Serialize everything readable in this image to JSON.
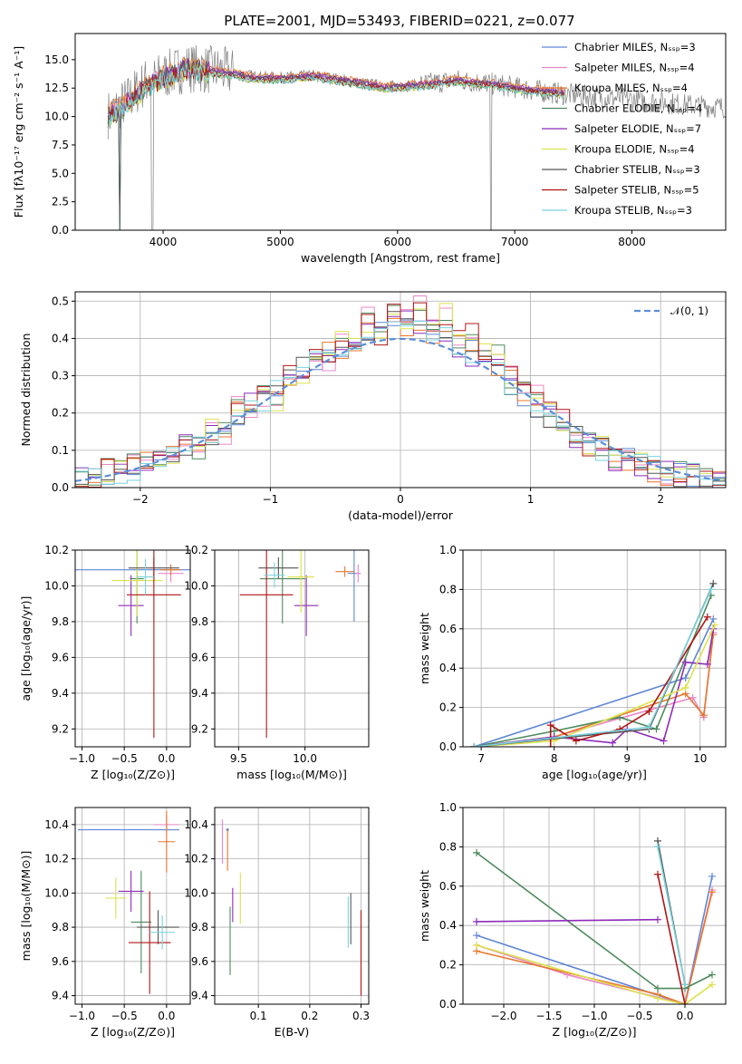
{
  "figure": {
    "title": "PLATE=2001, MJD=53493, FIBERID=0221, z=0.077"
  },
  "legend_top": [
    {
      "label": "Chabrier MILES, Nₛₛₚ=3",
      "color": "#5f86d6"
    },
    {
      "label": "Salpeter MILES, Nₛₛₚ=4",
      "color": "#e987c8"
    },
    {
      "label": "Kroupa MILES, Nₛₛₚ=4",
      "color": "#e8762b"
    },
    {
      "label": "Chabrier ELODIE, Nₛₛₚ=4",
      "color": "#4e8a5e"
    },
    {
      "label": "Salpeter ELODIE, Nₛₛₚ=7",
      "color": "#8e2bb8"
    },
    {
      "label": "Kroupa ELODIE, Nₛₛₚ=4",
      "color": "#dce24a"
    },
    {
      "label": "Chabrier STELIB, Nₛₛₚ=3",
      "color": "#555555"
    },
    {
      "label": "Salpeter STELIB, Nₛₛₚ=5",
      "color": "#b01515"
    },
    {
      "label": "Kroupa STELIB, Nₛₛₚ=3",
      "color": "#7ad3dd"
    }
  ],
  "legend_hist": {
    "label": "𝒩(0, 1)",
    "color": "#5b8fd9"
  },
  "chart_data": [
    {
      "id": "spectrum",
      "type": "line",
      "title": "PLATE=2001, MJD=53493, FIBERID=0221, z=0.077",
      "xlabel": "wavelength [Angstrom, rest frame]",
      "ylabel": "Flux [fλ10⁻¹⁷ erg cm⁻² s⁻¹ A⁻¹]",
      "xlim": [
        3250,
        8800
      ],
      "ylim": [
        0,
        17.3
      ],
      "xticks": [
        4000,
        5000,
        6000,
        7000,
        8000
      ],
      "yticks": [
        0.0,
        2.5,
        5.0,
        7.5,
        10.0,
        12.5,
        15.0
      ],
      "data_envelope": {
        "x": [
          3550,
          3700,
          3850,
          4000,
          4200,
          4500,
          4800,
          5000,
          5300,
          5600,
          5900,
          6200,
          6500,
          6800,
          7100,
          7400,
          7700,
          8000,
          8300,
          8500,
          8800
        ],
        "y": [
          10.2,
          11.5,
          13.0,
          13.6,
          14.3,
          14.0,
          13.5,
          13.4,
          13.6,
          13.1,
          12.6,
          12.8,
          13.2,
          12.9,
          12.4,
          12.0,
          11.7,
          11.5,
          11.2,
          11.0,
          10.8
        ]
      },
      "series": [
        {
          "name": "Chabrier MILES, N_SSP=3",
          "x": [
            3530,
            3560,
            3700,
            3850,
            4000,
            4200,
            4500,
            4800,
            5000,
            5300,
            5600,
            5900,
            6200,
            6500,
            6800,
            7100,
            7420
          ],
          "y": [
            10.0,
            10.3,
            11.2,
            12.6,
            13.4,
            14.2,
            13.9,
            13.3,
            13.3,
            13.5,
            13.0,
            12.5,
            12.7,
            13.1,
            12.8,
            12.3,
            12.0
          ]
        },
        {
          "name": "Kroupa STELIB, N_SSP=3",
          "x": [
            3530,
            3560,
            3700,
            3850,
            4000,
            4200,
            4500,
            4800,
            5000,
            5300,
            5600,
            5900,
            6200,
            6500,
            6800,
            7100,
            7420
          ],
          "y": [
            9.5,
            10.0,
            11.0,
            12.4,
            13.2,
            14.0,
            13.7,
            13.2,
            13.2,
            13.4,
            12.9,
            12.4,
            12.6,
            13.0,
            12.7,
            12.2,
            11.9
          ]
        }
      ]
    },
    {
      "id": "residuals",
      "type": "histogram",
      "xlabel": "(data-model)/error",
      "ylabel": "Normed distribution",
      "xlim": [
        -2.5,
        2.5
      ],
      "ylim": [
        0,
        0.525
      ],
      "xticks": [
        -2,
        -1,
        0,
        1,
        2
      ],
      "yticks": [
        0.0,
        0.1,
        0.2,
        0.3,
        0.4,
        0.5
      ],
      "bin_edges_approx": [
        -2.5,
        -2.4,
        -2.3,
        -2.2,
        -2.1,
        -2.0,
        -1.9,
        -1.8,
        -1.7,
        -1.6,
        -1.5,
        -1.4,
        -1.3,
        -1.2,
        -1.1,
        -1.0,
        -0.9,
        -0.8,
        -0.7,
        -0.6,
        -0.5,
        -0.4,
        -0.3,
        -0.2,
        -0.1,
        0.0,
        0.1,
        0.2,
        0.3,
        0.4,
        0.5,
        0.6,
        0.7,
        0.8,
        0.9,
        1.0,
        1.1,
        1.2,
        1.3,
        1.4,
        1.5,
        1.6,
        1.7,
        1.8,
        1.9,
        2.0,
        2.1,
        2.2,
        2.3,
        2.4,
        2.5
      ],
      "series_approx_values": [
        [
          0.02,
          0.03,
          0.04,
          0.04,
          0.05,
          0.06,
          0.08,
          0.09,
          0.11,
          0.13,
          0.15,
          0.17,
          0.2,
          0.22,
          0.24,
          0.27,
          0.3,
          0.32,
          0.34,
          0.36,
          0.38,
          0.4,
          0.42,
          0.43,
          0.44,
          0.44,
          0.43,
          0.42,
          0.4,
          0.38,
          0.36,
          0.34,
          0.31,
          0.28,
          0.25,
          0.22,
          0.19,
          0.17,
          0.14,
          0.12,
          0.1,
          0.08,
          0.07,
          0.06,
          0.05,
          0.04,
          0.03,
          0.03,
          0.02,
          0.02
        ],
        [
          0.03,
          0.02,
          0.05,
          0.04,
          0.06,
          0.05,
          0.09,
          0.08,
          0.12,
          0.11,
          0.16,
          0.14,
          0.21,
          0.19,
          0.25,
          0.24,
          0.31,
          0.29,
          0.35,
          0.33,
          0.4,
          0.38,
          0.45,
          0.41,
          0.48,
          0.46,
          0.5,
          0.44,
          0.46,
          0.4,
          0.41,
          0.36,
          0.35,
          0.3,
          0.28,
          0.25,
          0.21,
          0.18,
          0.15,
          0.12,
          0.11,
          0.08,
          0.08,
          0.06,
          0.06,
          0.04,
          0.04,
          0.03,
          0.03,
          0.02
        ]
      ],
      "reference": {
        "name": "𝒩(0, 1)",
        "mu": 0,
        "sigma": 1
      }
    },
    {
      "id": "age-vs-Z",
      "type": "scatter",
      "xlabel": "Z [log₁₀(Z/Z⊙)]",
      "ylabel": "age  [log₁₀(age/yr)]",
      "xlim": [
        -1.08,
        0.28
      ],
      "ylim": [
        9.1,
        10.2
      ],
      "xticks": [
        -1.0,
        -0.5,
        0.0
      ],
      "yticks": [
        9.2,
        9.4,
        9.6,
        9.8,
        10.0,
        10.2
      ],
      "points": [
        {
          "x": -0.4,
          "y": 10.09,
          "xerr": 0.7,
          "yerr": 0.0,
          "color": "#5f86d6"
        },
        {
          "x": 0.05,
          "y": 10.07,
          "xerr": 0.15,
          "yerr": 0.05,
          "color": "#e987c8"
        },
        {
          "x": 0.05,
          "y": 10.09,
          "xerr": 0.12,
          "yerr": 0.03,
          "color": "#e8762b"
        },
        {
          "x": -0.35,
          "y": 10.04,
          "xerr": 0.08,
          "yerr": 0.25,
          "color": "#4e8a5e"
        },
        {
          "x": -0.42,
          "y": 9.89,
          "xerr": 0.15,
          "yerr": 0.17,
          "color": "#8e2bb8"
        },
        {
          "x": -0.35,
          "y": 10.03,
          "xerr": 0.3,
          "yerr": 0.2,
          "color": "#dce24a"
        },
        {
          "x": -0.15,
          "y": 10.1,
          "xerr": 0.3,
          "yerr": 0.06,
          "color": "#555555"
        },
        {
          "x": -0.15,
          "y": 9.95,
          "xerr": 0.32,
          "yerr": 0.8,
          "color": "#b01515"
        },
        {
          "x": -0.25,
          "y": 10.05,
          "xerr": 0.1,
          "yerr": 0.1,
          "color": "#7ad3dd"
        }
      ]
    },
    {
      "id": "age-vs-mass",
      "type": "scatter",
      "xlabel": "mass [log₁₀(M/M⊙)]",
      "ylabel": "",
      "xlim": [
        9.32,
        10.48
      ],
      "ylim": [
        9.1,
        10.2
      ],
      "xticks": [
        9.5,
        10.0
      ],
      "yticks": [
        9.2,
        9.4,
        9.6,
        9.8,
        10.0,
        10.2
      ],
      "points": [
        {
          "x": 10.37,
          "y": 10.07,
          "xerr": 0.05,
          "yerr": 0.27,
          "color": "#5f86d6"
        },
        {
          "x": 10.4,
          "y": 10.07,
          "xerr": 0.02,
          "yerr": 0.05,
          "color": "#e987c8"
        },
        {
          "x": 10.3,
          "y": 10.08,
          "xerr": 0.07,
          "yerr": 0.03,
          "color": "#e8762b"
        },
        {
          "x": 9.83,
          "y": 10.04,
          "xerr": 0.17,
          "yerr": 0.25,
          "color": "#4e8a5e"
        },
        {
          "x": 10.01,
          "y": 9.89,
          "xerr": 0.09,
          "yerr": 0.17,
          "color": "#8e2bb8"
        },
        {
          "x": 9.97,
          "y": 10.05,
          "xerr": 0.1,
          "yerr": 0.2,
          "color": "#dce24a"
        },
        {
          "x": 9.8,
          "y": 10.1,
          "xerr": 0.15,
          "yerr": 0.06,
          "color": "#555555"
        },
        {
          "x": 9.71,
          "y": 9.95,
          "xerr": 0.2,
          "yerr": 0.8,
          "color": "#b01515"
        },
        {
          "x": 9.77,
          "y": 10.06,
          "xerr": 0.08,
          "yerr": 0.07,
          "color": "#7ad3dd"
        }
      ]
    },
    {
      "id": "massweight-vs-age",
      "type": "line",
      "xlabel": "age  [log₁₀(age/yr)]",
      "ylabel": "mass weight",
      "xlim": [
        6.75,
        10.35
      ],
      "ylim": [
        0,
        1.0
      ],
      "xticks": [
        7,
        8,
        9,
        10
      ],
      "yticks": [
        0.0,
        0.2,
        0.4,
        0.6,
        0.8,
        1.0
      ],
      "series": [
        {
          "name": "Chabrier MILES",
          "color": "#5f86d6",
          "x": [
            6.9,
            9.8,
            10.18
          ],
          "y": [
            0.0,
            0.35,
            0.65
          ]
        },
        {
          "name": "Salpeter MILES",
          "color": "#e987c8",
          "x": [
            6.9,
            8.0,
            9.9,
            10.05,
            10.18
          ],
          "y": [
            0.0,
            0.05,
            0.25,
            0.15,
            0.58
          ]
        },
        {
          "name": "Kroupa MILES",
          "color": "#e8762b",
          "x": [
            6.9,
            8.0,
            9.8,
            10.05,
            10.18
          ],
          "y": [
            0.0,
            0.05,
            0.27,
            0.16,
            0.57
          ]
        },
        {
          "name": "Chabrier ELODIE",
          "color": "#4e8a5e",
          "x": [
            6.9,
            8.0,
            8.9,
            9.4,
            10.15
          ],
          "y": [
            0.0,
            0.08,
            0.15,
            0.09,
            0.77
          ]
        },
        {
          "name": "Salpeter ELODIE",
          "color": "#8e2bb8",
          "x": [
            6.9,
            8.0,
            8.8,
            9.0,
            9.5,
            9.8,
            10.1,
            10.18
          ],
          "y": [
            0.0,
            0.05,
            0.02,
            0.09,
            0.03,
            0.43,
            0.42,
            0.6
          ]
        },
        {
          "name": "Kroupa ELODIE",
          "color": "#dce24a",
          "x": [
            6.9,
            8.0,
            9.8,
            10.2
          ],
          "y": [
            0.0,
            0.03,
            0.3,
            0.62
          ]
        },
        {
          "name": "Chabrier STELIB",
          "color": "#555555",
          "x": [
            6.9,
            9.3,
            10.18
          ],
          "y": [
            0.0,
            0.09,
            0.83
          ]
        },
        {
          "name": "Salpeter STELIB",
          "color": "#b01515",
          "x": [
            7.95,
            7.95,
            8.3,
            8.9,
            9.3,
            10.1
          ],
          "y": [
            0.0,
            0.11,
            0.03,
            0.09,
            0.18,
            0.66
          ]
        },
        {
          "name": "Kroupa STELIB",
          "color": "#7ad3dd",
          "x": [
            6.9,
            9.3,
            10.15
          ],
          "y": [
            0.0,
            0.1,
            0.8
          ]
        }
      ]
    },
    {
      "id": "mass-vs-Z",
      "type": "scatter",
      "xlabel": "Z [log₁₀(Z/Z⊙)]",
      "ylabel": "mass [log₁₀(M/M⊙)]",
      "xlim": [
        -1.08,
        0.28
      ],
      "ylim": [
        9.35,
        10.5
      ],
      "xticks": [
        -1.0,
        -0.5,
        0.0
      ],
      "yticks": [
        9.4,
        9.6,
        9.8,
        10.0,
        10.2,
        10.4
      ],
      "points": [
        {
          "x": -0.45,
          "y": 10.37,
          "xerr": 0.6,
          "yerr": 0.0,
          "color": "#5f86d6"
        },
        {
          "x": 0.0,
          "y": 10.4,
          "xerr": 0.15,
          "yerr": 0.05,
          "color": "#e987c8"
        },
        {
          "x": 0.0,
          "y": 10.3,
          "xerr": 0.1,
          "yerr": 0.18,
          "color": "#e8762b"
        },
        {
          "x": -0.3,
          "y": 9.83,
          "xerr": 0.12,
          "yerr": 0.3,
          "color": "#4e8a5e"
        },
        {
          "x": -0.42,
          "y": 10.01,
          "xerr": 0.15,
          "yerr": 0.12,
          "color": "#8e2bb8"
        },
        {
          "x": -0.6,
          "y": 9.97,
          "xerr": 0.12,
          "yerr": 0.12,
          "color": "#dce24a"
        },
        {
          "x": -0.1,
          "y": 9.8,
          "xerr": 0.25,
          "yerr": 0.1,
          "color": "#555555"
        },
        {
          "x": -0.2,
          "y": 9.71,
          "xerr": 0.25,
          "yerr": 0.3,
          "color": "#b01515"
        },
        {
          "x": -0.05,
          "y": 9.77,
          "xerr": 0.15,
          "yerr": 0.1,
          "color": "#7ad3dd"
        }
      ]
    },
    {
      "id": "mass-vs-ebv",
      "type": "scatter",
      "xlabel": "E(B-V)",
      "ylabel": "",
      "xlim": [
        0.015,
        0.315
      ],
      "ylim": [
        9.35,
        10.5
      ],
      "xticks": [
        0.1,
        0.2,
        0.3
      ],
      "yticks": [
        9.4,
        9.6,
        9.8,
        10.0,
        10.2,
        10.4
      ],
      "points": [
        {
          "x": 0.04,
          "y": 10.37,
          "yerr": 0.0,
          "color": "#5f86d6"
        },
        {
          "x": 0.03,
          "y": 10.3,
          "yerr": 0.13,
          "color": "#e987c8"
        },
        {
          "x": 0.04,
          "y": 10.25,
          "yerr": 0.12,
          "color": "#e8762b"
        },
        {
          "x": 0.045,
          "y": 9.72,
          "yerr": 0.2,
          "color": "#4e8a5e"
        },
        {
          "x": 0.05,
          "y": 9.93,
          "yerr": 0.1,
          "color": "#8e2bb8"
        },
        {
          "x": 0.065,
          "y": 9.97,
          "yerr": 0.15,
          "color": "#dce24a"
        },
        {
          "x": 0.28,
          "y": 9.85,
          "yerr": 0.15,
          "color": "#555555"
        },
        {
          "x": 0.3,
          "y": 9.65,
          "yerr": 0.25,
          "color": "#b01515"
        },
        {
          "x": 0.275,
          "y": 9.83,
          "yerr": 0.15,
          "color": "#7ad3dd"
        }
      ]
    },
    {
      "id": "massweight-vs-Z",
      "type": "line",
      "xlabel": "Z [log₁₀(Z/Z⊙)]",
      "ylabel": "mass weight",
      "xlim": [
        -2.45,
        0.45
      ],
      "ylim": [
        0,
        1.0
      ],
      "xticks": [
        -2.0,
        -1.5,
        -1.0,
        -0.5,
        0.0
      ],
      "yticks": [
        0.0,
        0.2,
        0.4,
        0.6,
        0.8,
        1.0
      ],
      "series": [
        {
          "name": "Chabrier MILES",
          "color": "#5f86d6",
          "x": [
            -2.3,
            0.0,
            0.3
          ],
          "y": [
            0.35,
            0.0,
            0.65
          ]
        },
        {
          "name": "Salpeter MILES",
          "color": "#e987c8",
          "x": [
            -2.3,
            -1.3,
            0.0,
            0.3
          ],
          "y": [
            0.3,
            0.15,
            0.0,
            0.58
          ]
        },
        {
          "name": "Kroupa MILES",
          "color": "#e8762b",
          "x": [
            -2.3,
            -0.3,
            0.0,
            0.3
          ],
          "y": [
            0.27,
            0.05,
            0.0,
            0.57
          ]
        },
        {
          "name": "Chabrier ELODIE",
          "color": "#4e8a5e",
          "x": [
            -2.3,
            -0.3,
            0.0,
            0.3
          ],
          "y": [
            0.77,
            0.08,
            0.08,
            0.15
          ]
        },
        {
          "name": "Salpeter ELODIE",
          "color": "#8e2bb8",
          "x": [
            -2.3,
            -0.3
          ],
          "y": [
            0.42,
            0.43
          ]
        },
        {
          "name": "Kroupa ELODIE",
          "color": "#dce24a",
          "x": [
            -2.3,
            -0.3,
            0.0,
            0.3
          ],
          "y": [
            0.3,
            0.03,
            0.0,
            0.1
          ]
        },
        {
          "name": "Chabrier STELIB",
          "color": "#555555",
          "x": [
            -0.3,
            0.0
          ],
          "y": [
            0.83,
            0.1
          ]
        },
        {
          "name": "Salpeter STELIB",
          "color": "#b01515",
          "x": [
            -0.3,
            0.0
          ],
          "y": [
            0.66,
            0.0
          ]
        },
        {
          "name": "Kroupa STELIB",
          "color": "#7ad3dd",
          "x": [
            -0.3,
            0.0
          ],
          "y": [
            0.8,
            0.1
          ]
        }
      ]
    }
  ]
}
